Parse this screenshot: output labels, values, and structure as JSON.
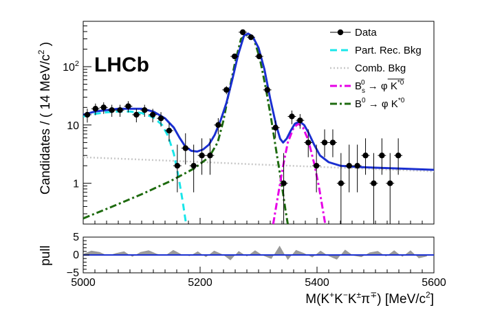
{
  "chart_data": [
    {
      "type": "scatter",
      "panel": "main",
      "logo": "LHCb",
      "ylabel": {
        "text": "Candidates / ( 14 MeV/c",
        "sup": "2",
        "tail": " )"
      },
      "xlim": [
        5000,
        5600
      ],
      "ylim": [
        0.2,
        600
      ],
      "yscale": "log",
      "ytick_labels": [
        {
          "value": 1,
          "text": "1"
        },
        {
          "value": 10,
          "text": "10"
        },
        {
          "value": 100,
          "base": "10",
          "exp": "2"
        }
      ],
      "legend": {
        "position": "top-right",
        "entries": [
          {
            "key": "data",
            "label": "Data",
            "color": "#000000",
            "style": "marker"
          },
          {
            "key": "partrec",
            "label": "Part. Rec. Bkg",
            "color": "#19e6ea",
            "style": "dashed"
          },
          {
            "key": "comb",
            "label": "Comb. Bkg",
            "color": "#c8c8c8",
            "style": "dotted"
          },
          {
            "key": "bs",
            "label": "B",
            "sub": "s",
            "sup": "0",
            "rest": " → φ ",
            "final": "K",
            "final_sup": "*0",
            "overline": true,
            "color": "#e600e6",
            "style": "dashdot"
          },
          {
            "key": "bd",
            "label": "B",
            "sup": "0",
            "rest": " → φ K",
            "rest_sup": "*0",
            "color": "#1e6b0f",
            "style": "dashdot"
          }
        ]
      },
      "series": [
        {
          "name": "Data",
          "x_halfwidth": 7,
          "points": [
            {
              "x": 5007,
              "y": 15,
              "lo": 4,
              "hi": 4
            },
            {
              "x": 5021,
              "y": 19,
              "lo": 4.3,
              "hi": 4.3
            },
            {
              "x": 5035,
              "y": 20,
              "lo": 4.5,
              "hi": 4.5
            },
            {
              "x": 5049,
              "y": 18,
              "lo": 4.2,
              "hi": 4.2
            },
            {
              "x": 5063,
              "y": 18,
              "lo": 4.2,
              "hi": 4.2
            },
            {
              "x": 5077,
              "y": 21,
              "lo": 4.6,
              "hi": 4.6
            },
            {
              "x": 5091,
              "y": 15,
              "lo": 3.9,
              "hi": 3.9
            },
            {
              "x": 5105,
              "y": 18,
              "lo": 4.2,
              "hi": 4.2
            },
            {
              "x": 5119,
              "y": 15,
              "lo": 3.9,
              "hi": 3.9
            },
            {
              "x": 5133,
              "y": 13,
              "lo": 3.6,
              "hi": 3.6
            },
            {
              "x": 5147,
              "y": 8,
              "lo": 2.8,
              "hi": 2.8
            },
            {
              "x": 5161,
              "y": 2,
              "lo": 1.3,
              "hi": 2.6
            },
            {
              "x": 5175,
              "y": 4,
              "lo": 1.9,
              "hi": 3.2
            },
            {
              "x": 5189,
              "y": 2,
              "lo": 1.3,
              "hi": 2.6
            },
            {
              "x": 5203,
              "y": 3,
              "lo": 1.6,
              "hi": 2.9
            },
            {
              "x": 5217,
              "y": 3,
              "lo": 1.6,
              "hi": 2.9
            },
            {
              "x": 5231,
              "y": 10,
              "lo": 3.1,
              "hi": 3.1
            },
            {
              "x": 5245,
              "y": 40,
              "lo": 6.3,
              "hi": 6.3
            },
            {
              "x": 5259,
              "y": 150,
              "lo": 12,
              "hi": 12
            },
            {
              "x": 5273,
              "y": 390,
              "lo": 20,
              "hi": 20
            },
            {
              "x": 5287,
              "y": 320,
              "lo": 18,
              "hi": 18
            },
            {
              "x": 5301,
              "y": 150,
              "lo": 12,
              "hi": 12
            },
            {
              "x": 5315,
              "y": 40,
              "lo": 6.3,
              "hi": 6.3
            },
            {
              "x": 5329,
              "y": 9,
              "lo": 3,
              "hi": 3
            },
            {
              "x": 5343,
              "y": 1,
              "lo": 0.9,
              "hi": 2.3
            },
            {
              "x": 5357,
              "y": 14,
              "lo": 3.7,
              "hi": 3.7
            },
            {
              "x": 5371,
              "y": 12,
              "lo": 3.4,
              "hi": 3.4
            },
            {
              "x": 5385,
              "y": 5,
              "lo": 2.2,
              "hi": 3.4
            },
            {
              "x": 5399,
              "y": 2,
              "lo": 1.3,
              "hi": 2.6
            },
            {
              "x": 5413,
              "y": 5,
              "lo": 2.2,
              "hi": 3.4
            },
            {
              "x": 5427,
              "y": 5,
              "lo": 2.2,
              "hi": 3.4
            },
            {
              "x": 5441,
              "y": 1,
              "lo": 0.9,
              "hi": 2.3
            },
            {
              "x": 5455,
              "y": 2,
              "lo": 1.3,
              "hi": 2.6
            },
            {
              "x": 5469,
              "y": 2,
              "lo": 1.3,
              "hi": 2.6
            },
            {
              "x": 5483,
              "y": 3,
              "lo": 1.6,
              "hi": 2.9
            },
            {
              "x": 5497,
              "y": 1,
              "lo": 0.9,
              "hi": 2.3
            },
            {
              "x": 5511,
              "y": 3,
              "lo": 1.6,
              "hi": 2.9
            },
            {
              "x": 5525,
              "y": 1,
              "lo": 0.9,
              "hi": 2.3
            },
            {
              "x": 5539,
              "y": 3,
              "lo": 1.6,
              "hi": 2.9
            }
          ]
        },
        {
          "name": "Total fit",
          "color": "#1a2fd0",
          "style": "solid",
          "points": [
            [
              5000,
              15
            ],
            [
              5020,
              17
            ],
            [
              5040,
              18
            ],
            [
              5060,
              19
            ],
            [
              5080,
              19
            ],
            [
              5100,
              19
            ],
            [
              5120,
              17
            ],
            [
              5140,
              13
            ],
            [
              5155,
              9
            ],
            [
              5165,
              6
            ],
            [
              5175,
              4.2
            ],
            [
              5185,
              3.6
            ],
            [
              5195,
              3.5
            ],
            [
              5205,
              3.8
            ],
            [
              5215,
              4.6
            ],
            [
              5225,
              6.8
            ],
            [
              5235,
              12
            ],
            [
              5245,
              24
            ],
            [
              5255,
              60
            ],
            [
              5265,
              160
            ],
            [
              5275,
              340
            ],
            [
              5282,
              370
            ],
            [
              5290,
              330
            ],
            [
              5300,
              210
            ],
            [
              5310,
              90
            ],
            [
              5320,
              28
            ],
            [
              5330,
              10
            ],
            [
              5337,
              5.8
            ],
            [
              5342,
              5
            ],
            [
              5348,
              5.8
            ],
            [
              5355,
              8
            ],
            [
              5362,
              10.5
            ],
            [
              5370,
              11.5
            ],
            [
              5378,
              10
            ],
            [
              5385,
              7.5
            ],
            [
              5395,
              4.6
            ],
            [
              5405,
              3
            ],
            [
              5420,
              2.3
            ],
            [
              5440,
              2
            ],
            [
              5470,
              1.9
            ],
            [
              5500,
              1.85
            ],
            [
              5550,
              1.78
            ],
            [
              5600,
              1.7
            ]
          ]
        },
        {
          "name": "Part. Rec. Bkg",
          "color": "#19e6ea",
          "style": "dashed",
          "points": [
            [
              5000,
              14
            ],
            [
              5020,
              15.5
            ],
            [
              5040,
              16.5
            ],
            [
              5060,
              17
            ],
            [
              5080,
              17
            ],
            [
              5100,
              16
            ],
            [
              5120,
              13.5
            ],
            [
              5135,
              10
            ],
            [
              5145,
              6.5
            ],
            [
              5155,
              3.2
            ],
            [
              5163,
              1.3
            ],
            [
              5170,
              0.5
            ],
            [
              5176,
              0.2
            ]
          ]
        },
        {
          "name": "Comb. Bkg",
          "color": "#c8c8c8",
          "style": "dotted",
          "points": [
            [
              5000,
              2.8
            ],
            [
              5100,
              2.55
            ],
            [
              5200,
              2.32
            ],
            [
              5300,
              2.1
            ],
            [
              5400,
              1.92
            ],
            [
              5500,
              1.75
            ],
            [
              5600,
              1.6
            ]
          ]
        },
        {
          "name": "B0 -> phi K*0",
          "color": "#1e6b0f",
          "style": "dashdot",
          "points": [
            [
              5000,
              0.25
            ],
            [
              5050,
              0.4
            ],
            [
              5100,
              0.65
            ],
            [
              5150,
              1.1
            ],
            [
              5190,
              1.8
            ],
            [
              5215,
              2.8
            ],
            [
              5230,
              5
            ],
            [
              5240,
              12
            ],
            [
              5250,
              40
            ],
            [
              5260,
              120
            ],
            [
              5270,
              300
            ],
            [
              5282,
              360
            ],
            [
              5292,
              300
            ],
            [
              5302,
              140
            ],
            [
              5312,
              45
            ],
            [
              5322,
              12
            ],
            [
              5332,
              2.8
            ],
            [
              5340,
              0.9
            ],
            [
              5346,
              0.35
            ],
            [
              5350,
              0.2
            ]
          ]
        },
        {
          "name": "Bs0 -> phi K*0bar",
          "color": "#e600e6",
          "style": "dashdot",
          "points": [
            [
              5325,
              0.2
            ],
            [
              5333,
              0.6
            ],
            [
              5342,
              2
            ],
            [
              5350,
              5
            ],
            [
              5360,
              9
            ],
            [
              5368,
              10.5
            ],
            [
              5376,
              9
            ],
            [
              5385,
              5.5
            ],
            [
              5395,
              2.2
            ],
            [
              5403,
              0.9
            ],
            [
              5410,
              0.35
            ],
            [
              5414,
              0.2
            ]
          ]
        }
      ]
    },
    {
      "type": "area",
      "panel": "pull",
      "ylabel": "pull",
      "xlabel": {
        "text": "M(K",
        "parts": [
          {
            "t": "M(K"
          },
          {
            "t": "+",
            "sup": true
          },
          {
            "t": "K"
          },
          {
            "t": "−",
            "sup": true
          },
          {
            "t": "K"
          },
          {
            "t": "±",
            "sup": true
          },
          {
            "t": "π"
          },
          {
            "t": "∓",
            "sup": true
          },
          {
            "t": ") [MeV/c"
          },
          {
            "t": "2",
            "sup": true
          },
          {
            "t": "]"
          }
        ]
      },
      "xlim": [
        5000,
        5600
      ],
      "ylim": [
        -5,
        5
      ],
      "xticks": [
        5000,
        5200,
        5400,
        5600
      ],
      "yticks": [
        {
          "value": 5,
          "text": "5"
        },
        {
          "value": 0,
          "text": "0"
        },
        {
          "value": -5,
          "text": "−5"
        }
      ],
      "color": "#999999",
      "zero_line_color": "#1a2fd0",
      "x": [
        5000,
        5014,
        5028,
        5042,
        5056,
        5070,
        5084,
        5098,
        5112,
        5126,
        5140,
        5154,
        5168,
        5182,
        5196,
        5210,
        5224,
        5238,
        5252,
        5266,
        5280,
        5294,
        5308,
        5322,
        5336,
        5350,
        5364,
        5378,
        5392,
        5406,
        5420,
        5434,
        5448,
        5462,
        5476,
        5490,
        5504,
        5518,
        5532,
        5546,
        5560,
        5574,
        5588
      ],
      "values": [
        0.3,
        1.2,
        0.8,
        -0.2,
        0.5,
        1.0,
        -0.5,
        0.8,
        1.3,
        0.3,
        -0.2,
        1.4,
        0.2,
        -0.3,
        1.0,
        -0.6,
        1.2,
        0.2,
        -1.5,
        1.1,
        -0.4,
        1.3,
        -0.2,
        -1.1,
        2.6,
        -1.4,
        1.4,
        0.5,
        -0.7,
        1.2,
        -0.3,
        -1.3,
        1.5,
        -0.2,
        -0.6,
        0.7,
        1.1,
        -0.4,
        1.3,
        -0.5,
        1.3,
        -0.9,
        -0.4
      ]
    }
  ]
}
